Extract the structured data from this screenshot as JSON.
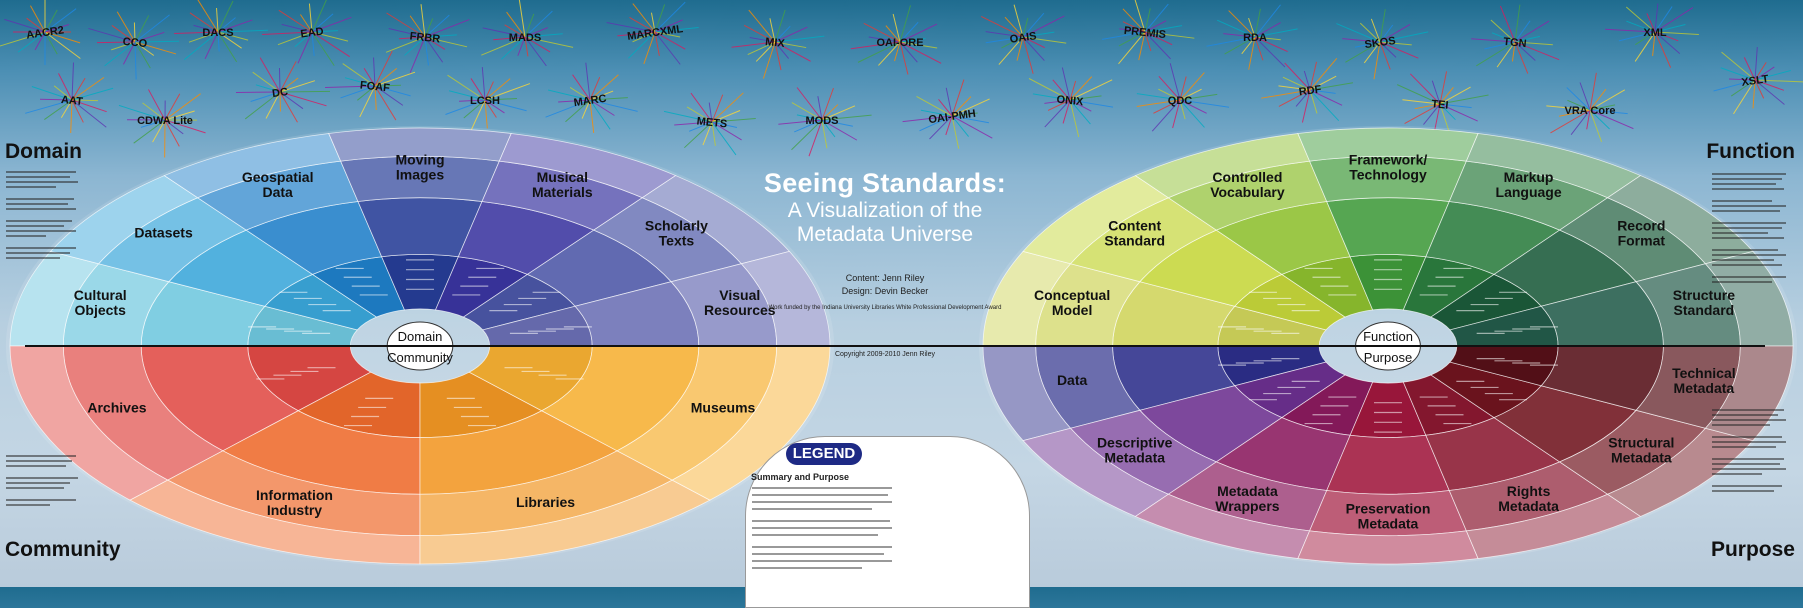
{
  "header_standards": [
    "AACR2",
    "CCO",
    "DACS",
    "EAD",
    "FRBR",
    "MADS",
    "MARCXML",
    "MIX",
    "OAI-ORE",
    "OAIS",
    "PREMIS",
    "RDA",
    "SKOS",
    "TGN",
    "XML",
    "XSLT",
    "AAT",
    "CDWA Lite",
    "DC",
    "FOAF",
    "LCSH",
    "MARC",
    "METS",
    "MODS",
    "OAI-PMH",
    "ONIX",
    "QDC",
    "RDF",
    "TEI",
    "VRA Core"
  ],
  "corners": {
    "top_left": "Domain",
    "bottom_left": "Community",
    "top_right": "Function",
    "bottom_right": "Purpose"
  },
  "title": {
    "main": "Seeing Standards:",
    "sub1": "A Visualization of the",
    "sub2": "Metadata Universe"
  },
  "credits": {
    "content": "Content: Jenn Riley",
    "design": "Design: Devin Becker",
    "funding": "Work funded by the Indiana University Libraries White Professional Development Award",
    "copyright": "Copyright 2009-2010 Jenn Riley"
  },
  "left_wheel": {
    "hub_top": "Domain",
    "hub_bottom": "Community",
    "upper_sectors": [
      "Cultural Objects",
      "Datasets",
      "Geospatial Data",
      "Moving Images",
      "Musical Materials",
      "Scholarly Texts",
      "Visual Resources"
    ],
    "lower_sectors": [
      "Archives",
      "Information Industry",
      "Libraries",
      "Museums"
    ]
  },
  "right_wheel": {
    "hub_top": "Function",
    "hub_bottom": "Purpose",
    "upper_sectors": [
      "Conceptual Model",
      "Content Standard",
      "Controlled Vocabulary",
      "Framework/ Technology",
      "Markup Language",
      "Record Format",
      "Structure Standard"
    ],
    "lower_sectors": [
      "Data",
      "Descriptive Metadata",
      "Metadata Wrappers",
      "Preservation Metadata",
      "Rights Metadata",
      "Structural Metadata",
      "Technical Metadata"
    ]
  },
  "legend": {
    "label": "LEGEND",
    "heading": "Summary and Purpose"
  },
  "colors": {
    "left_upper": [
      "#6fc7de",
      "#3aa6da",
      "#1f7fc9",
      "#263d97",
      "#3a35a0",
      "#4b56a6",
      "#6a6fb4"
    ],
    "left_lower": [
      "#e04a45",
      "#ee6a2c",
      "#f19724",
      "#f6b033"
    ],
    "right_upper": [
      "#cfd45a",
      "#c5d63a",
      "#8dbf2e",
      "#3f9a3a",
      "#2b7c3e",
      "#1b5a3a",
      "#235b4a"
    ],
    "right_lower": [
      "#2c2e8a",
      "#6b2f8f",
      "#8a1a5e",
      "#a0173d",
      "#8a1830",
      "#70141e",
      "#561018"
    ]
  }
}
